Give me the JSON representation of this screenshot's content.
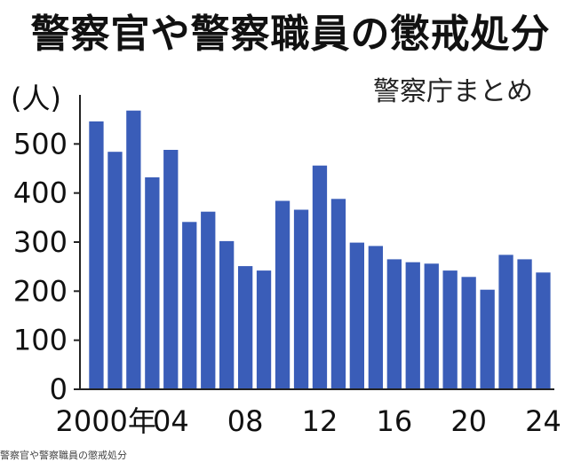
{
  "title": "警察官や警察職員の懲戒処分",
  "source": "警察庁まとめ",
  "caption": "警察官や警察職員の懲戒処分",
  "colors": {
    "bar": "#3a5db8",
    "axis": "#222222"
  },
  "chart_data": {
    "type": "bar",
    "ylabel": "(人)",
    "ylim": [
      0,
      600
    ],
    "yticks": [
      0,
      100,
      200,
      300,
      400,
      500
    ],
    "categories": [
      "2000",
      "2001",
      "2002",
      "2003",
      "2004",
      "2005",
      "2006",
      "2007",
      "2008",
      "2009",
      "2010",
      "2011",
      "2012",
      "2013",
      "2014",
      "2015",
      "2016",
      "2017",
      "2018",
      "2019",
      "2020",
      "2021",
      "2022",
      "2023",
      "2024"
    ],
    "xtick_labels": [
      {
        "category": "2000",
        "label": "2000年"
      },
      {
        "category": "2004",
        "label": "04"
      },
      {
        "category": "2008",
        "label": "08"
      },
      {
        "category": "2012",
        "label": "12"
      },
      {
        "category": "2016",
        "label": "16"
      },
      {
        "category": "2020",
        "label": "20"
      },
      {
        "category": "2024",
        "label": "24"
      }
    ],
    "values": [
      546,
      484,
      568,
      432,
      488,
      341,
      362,
      302,
      251,
      242,
      384,
      366,
      456,
      388,
      299,
      292,
      265,
      259,
      256,
      242,
      229,
      203,
      274,
      265,
      238
    ]
  }
}
